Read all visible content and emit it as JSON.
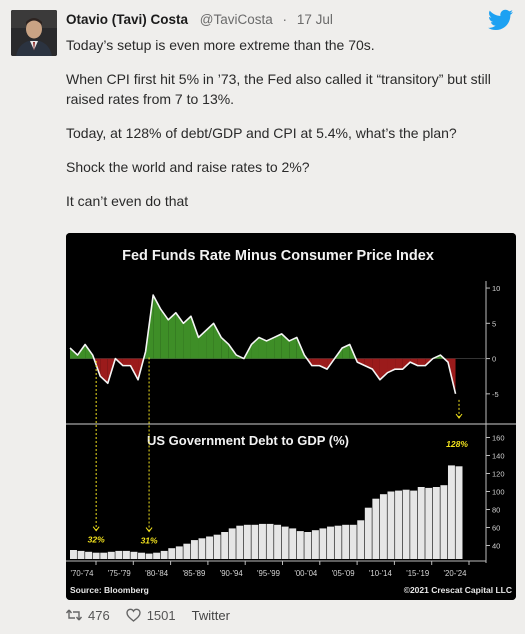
{
  "tweet": {
    "author_name": "Otavio (Tavi) Costa",
    "handle": "@TaviCosta",
    "separator": "·",
    "date": "17 Jul",
    "paragraphs": [
      "Today’s setup is even more extreme than the 70s.",
      "When CPI first hit 5% in ’73, the Fed also called it “transitory” but still raised rates from 7 to 13%.",
      "Today, at 128% of debt/GDP and CPI at 5.4%, what’s the plan?",
      "Shock the world and raise rates to 2%?",
      "It can’t even do that"
    ],
    "retweets": "476",
    "likes": "1501",
    "source": "Twitter",
    "brand_color": "#1da1f2"
  },
  "chart_data": [
    {
      "type": "area",
      "title": "Fed Funds Rate Minus Consumer Price Index",
      "y_ticks": [
        "10",
        "5",
        "0",
        "-5"
      ],
      "ylim": [
        -8,
        11
      ],
      "positive_color": "#3e8e27",
      "negative_color": "#9b1b1b",
      "x": [
        1970,
        1971,
        1972,
        1973,
        1974,
        1975,
        1976,
        1977,
        1978,
        1979,
        1980,
        1981,
        1982,
        1983,
        1984,
        1985,
        1986,
        1987,
        1988,
        1989,
        1990,
        1991,
        1992,
        1993,
        1994,
        1995,
        1996,
        1997,
        1998,
        1999,
        2000,
        2001,
        2002,
        2003,
        2004,
        2005,
        2006,
        2007,
        2008,
        2009,
        2010,
        2011,
        2012,
        2013,
        2014,
        2015,
        2016,
        2017,
        2018,
        2019,
        2020,
        2021
      ],
      "values": [
        1.5,
        0.5,
        2.0,
        0.5,
        -2.5,
        -3.5,
        0.0,
        -1.0,
        -1.0,
        -3.0,
        1.0,
        9.0,
        7.0,
        5.5,
        6.5,
        5.0,
        6.0,
        3.0,
        4.0,
        5.0,
        3.0,
        2.0,
        0.5,
        0.0,
        2.0,
        3.0,
        2.5,
        3.0,
        3.5,
        2.5,
        3.0,
        0.5,
        -1.0,
        -1.0,
        -1.5,
        0.0,
        1.5,
        2.0,
        -0.5,
        -1.0,
        -1.5,
        -3.0,
        -2.0,
        -1.5,
        -1.5,
        -0.5,
        -1.0,
        -1.0,
        0.0,
        0.5,
        -0.5,
        -5.0
      ]
    },
    {
      "type": "bar",
      "title": "US Government Debt to GDP (%)",
      "y_ticks": [
        "160",
        "140",
        "120",
        "100",
        "80",
        "60",
        "40"
      ],
      "ylim": [
        25,
        165
      ],
      "bar_color": "#e6e6e6",
      "x": [
        1970,
        1971,
        1972,
        1973,
        1974,
        1975,
        1976,
        1977,
        1978,
        1979,
        1980,
        1981,
        1982,
        1983,
        1984,
        1985,
        1986,
        1987,
        1988,
        1989,
        1990,
        1991,
        1992,
        1993,
        1994,
        1995,
        1996,
        1997,
        1998,
        1999,
        2000,
        2001,
        2002,
        2003,
        2004,
        2005,
        2006,
        2007,
        2008,
        2009,
        2010,
        2011,
        2012,
        2013,
        2014,
        2015,
        2016,
        2017,
        2018,
        2019,
        2020,
        2021
      ],
      "values": [
        35,
        34,
        33,
        32,
        32,
        33,
        34,
        34,
        33,
        32,
        31,
        32,
        34,
        37,
        39,
        42,
        46,
        48,
        50,
        52,
        55,
        59,
        62,
        63,
        63,
        64,
        64,
        63,
        61,
        59,
        56,
        55,
        57,
        59,
        61,
        62,
        63,
        63,
        68,
        82,
        92,
        97,
        100,
        101,
        102,
        101,
        105,
        104,
        105,
        107,
        129,
        128
      ],
      "annotations": [
        {
          "label": "32%",
          "x": 1973
        },
        {
          "label": "31%",
          "x": 1980
        },
        {
          "label": "128%",
          "x": 2021
        }
      ],
      "annotation_color": "#f2e21d"
    }
  ],
  "x_tick_labels": [
    "'70-'74",
    "'75-'79",
    "'80-'84",
    "'85-'89",
    "'90-'94",
    "'95-'99",
    "'00-'04",
    "'05-'09",
    "'10-'14",
    "'15-'19",
    "'20-'24"
  ],
  "footer": {
    "source": "Source: Bloomberg",
    "credit": "©2021 Crescat Capital LLC"
  }
}
